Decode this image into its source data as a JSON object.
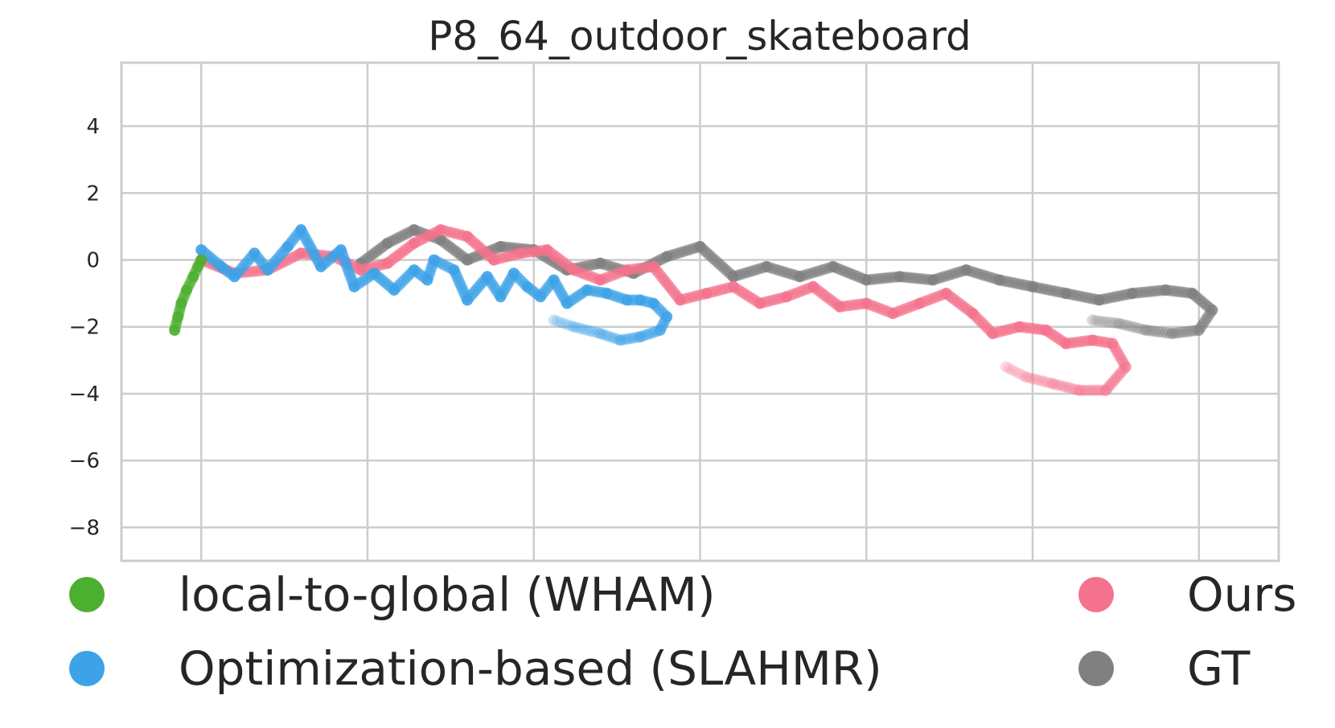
{
  "chart_data": {
    "type": "scatter",
    "title": "P8_64_outdoor_skateboard",
    "xlabel": "",
    "ylabel": "",
    "xlim": [
      -1.2,
      16.2
    ],
    "ylim": [
      -9,
      5.9
    ],
    "x_ticks": [
      0,
      2.5,
      5,
      7.5,
      10,
      12.5,
      15
    ],
    "y_ticks": [
      4,
      2,
      0,
      -2,
      -4,
      -6,
      -8
    ],
    "y_tick_labels": [
      "4",
      "2",
      "0",
      "−2",
      "−4",
      "−6",
      "−8"
    ],
    "grid": true,
    "legend_position": "bottom",
    "series": [
      {
        "name": "local-to-global (WHAM)",
        "color": "#4daf30",
        "points": [
          [
            -0.4,
            -2.1
          ],
          [
            -0.35,
            -1.7
          ],
          [
            -0.3,
            -1.3
          ],
          [
            -0.22,
            -0.9
          ],
          [
            -0.12,
            -0.5
          ],
          [
            -0.05,
            -0.2
          ],
          [
            0,
            0
          ]
        ]
      },
      {
        "name": "Optimization-based (SLAHMR)",
        "color": "#3ea2e8",
        "points": [
          [
            0,
            0.3
          ],
          [
            0.3,
            -0.2
          ],
          [
            0.5,
            -0.5
          ],
          [
            0.8,
            0.2
          ],
          [
            1.0,
            -0.3
          ],
          [
            1.3,
            0.4
          ],
          [
            1.5,
            0.9
          ],
          [
            1.8,
            -0.2
          ],
          [
            2.1,
            0.3
          ],
          [
            2.3,
            -0.8
          ],
          [
            2.6,
            -0.4
          ],
          [
            2.9,
            -0.9
          ],
          [
            3.2,
            -0.3
          ],
          [
            3.4,
            -0.6
          ],
          [
            3.5,
            0.0
          ],
          [
            3.8,
            -0.3
          ],
          [
            4.0,
            -1.2
          ],
          [
            4.3,
            -0.5
          ],
          [
            4.5,
            -1.1
          ],
          [
            4.7,
            -0.4
          ],
          [
            4.9,
            -0.8
          ],
          [
            5.1,
            -1.1
          ],
          [
            5.3,
            -0.6
          ],
          [
            5.5,
            -1.3
          ],
          [
            5.8,
            -0.9
          ],
          [
            6.1,
            -1.0
          ],
          [
            6.4,
            -1.2
          ],
          [
            6.6,
            -1.2
          ],
          [
            6.8,
            -1.3
          ],
          [
            7.0,
            -1.7
          ],
          [
            6.9,
            -2.1
          ],
          [
            6.6,
            -2.3
          ],
          [
            6.3,
            -2.4
          ],
          [
            6.0,
            -2.2
          ],
          [
            5.6,
            -2.0
          ],
          [
            5.3,
            -1.8
          ]
        ]
      },
      {
        "name": "Ours",
        "color": "#f4728d",
        "points": [
          [
            0,
            0
          ],
          [
            0.5,
            -0.4
          ],
          [
            1.0,
            -0.3
          ],
          [
            1.5,
            0.2
          ],
          [
            2.0,
            0.1
          ],
          [
            2.4,
            -0.3
          ],
          [
            2.8,
            -0.1
          ],
          [
            3.2,
            0.5
          ],
          [
            3.6,
            0.9
          ],
          [
            4.0,
            0.7
          ],
          [
            4.4,
            0.0
          ],
          [
            4.8,
            0.2
          ],
          [
            5.2,
            0.3
          ],
          [
            5.6,
            -0.3
          ],
          [
            6.0,
            -0.6
          ],
          [
            6.4,
            -0.3
          ],
          [
            6.8,
            -0.2
          ],
          [
            7.2,
            -1.2
          ],
          [
            7.6,
            -1.0
          ],
          [
            8.0,
            -0.8
          ],
          [
            8.4,
            -1.3
          ],
          [
            8.8,
            -1.1
          ],
          [
            9.2,
            -0.8
          ],
          [
            9.6,
            -1.4
          ],
          [
            10.0,
            -1.3
          ],
          [
            10.4,
            -1.6
          ],
          [
            10.8,
            -1.3
          ],
          [
            11.2,
            -1.0
          ],
          [
            11.6,
            -1.6
          ],
          [
            11.9,
            -2.2
          ],
          [
            12.3,
            -2.0
          ],
          [
            12.7,
            -2.1
          ],
          [
            13.0,
            -2.5
          ],
          [
            13.4,
            -2.4
          ],
          [
            13.7,
            -2.5
          ],
          [
            13.9,
            -3.2
          ],
          [
            13.6,
            -3.9
          ],
          [
            13.2,
            -3.9
          ],
          [
            12.8,
            -3.7
          ],
          [
            12.4,
            -3.5
          ],
          [
            12.1,
            -3.2
          ]
        ]
      },
      {
        "name": "GT",
        "color": "#808080",
        "points": [
          [
            2.4,
            -0.1
          ],
          [
            2.8,
            0.5
          ],
          [
            3.2,
            0.9
          ],
          [
            3.6,
            0.6
          ],
          [
            4.0,
            0.0
          ],
          [
            4.5,
            0.4
          ],
          [
            5.0,
            0.3
          ],
          [
            5.5,
            -0.3
          ],
          [
            6.0,
            -0.1
          ],
          [
            6.5,
            -0.4
          ],
          [
            7.0,
            0.1
          ],
          [
            7.5,
            0.4
          ],
          [
            8.0,
            -0.5
          ],
          [
            8.5,
            -0.2
          ],
          [
            9.0,
            -0.5
          ],
          [
            9.5,
            -0.2
          ],
          [
            10.0,
            -0.6
          ],
          [
            10.5,
            -0.5
          ],
          [
            11.0,
            -0.6
          ],
          [
            11.5,
            -0.3
          ],
          [
            12.0,
            -0.6
          ],
          [
            12.5,
            -0.8
          ],
          [
            13.0,
            -1.0
          ],
          [
            13.5,
            -1.2
          ],
          [
            14.0,
            -1.0
          ],
          [
            14.5,
            -0.9
          ],
          [
            14.9,
            -1.0
          ],
          [
            15.2,
            -1.5
          ],
          [
            15.0,
            -2.1
          ],
          [
            14.6,
            -2.2
          ],
          [
            14.2,
            -2.1
          ],
          [
            13.8,
            -1.9
          ],
          [
            13.4,
            -1.8
          ]
        ]
      }
    ]
  }
}
